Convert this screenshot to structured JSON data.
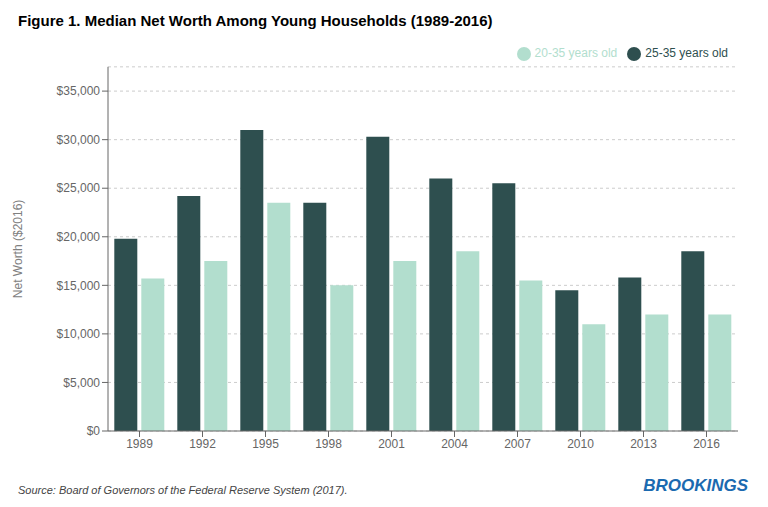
{
  "chart_data": {
    "type": "bar",
    "title": "Figure 1. Median Net Worth Among Young Households (1989-2016)",
    "ylabel": "Net Worth ($2016)",
    "annotations": [
      "Source: Board of Governors of the Federal Reserve System (2017).",
      "BROOKINGS"
    ],
    "categories": [
      "1989",
      "1992",
      "1995",
      "1998",
      "2001",
      "2004",
      "2007",
      "2010",
      "2013",
      "2016"
    ],
    "series": [
      {
        "name": "25-35 years old",
        "color": "#2e4f4f",
        "values": [
          19800,
          24200,
          31000,
          23500,
          30300,
          26000,
          25500,
          14500,
          15800,
          18500
        ]
      },
      {
        "name": "20-35 years old",
        "color": "#b2dece",
        "values": [
          15700,
          17500,
          23500,
          15000,
          17500,
          18500,
          15500,
          11000,
          12000,
          12000
        ]
      }
    ],
    "ylim": [
      0,
      37500
    ],
    "yticks": [
      {
        "value": 0,
        "label": "$0"
      },
      {
        "value": 5000,
        "label": "$5,000"
      },
      {
        "value": 10000,
        "label": "$10,000"
      },
      {
        "value": 15000,
        "label": "$15,000"
      },
      {
        "value": 20000,
        "label": "$20,000"
      },
      {
        "value": 25000,
        "label": "$25,000"
      },
      {
        "value": 30000,
        "label": "$30,000"
      },
      {
        "value": 35000,
        "label": "$35,000"
      }
    ],
    "grid": true,
    "legend": "upper right"
  }
}
